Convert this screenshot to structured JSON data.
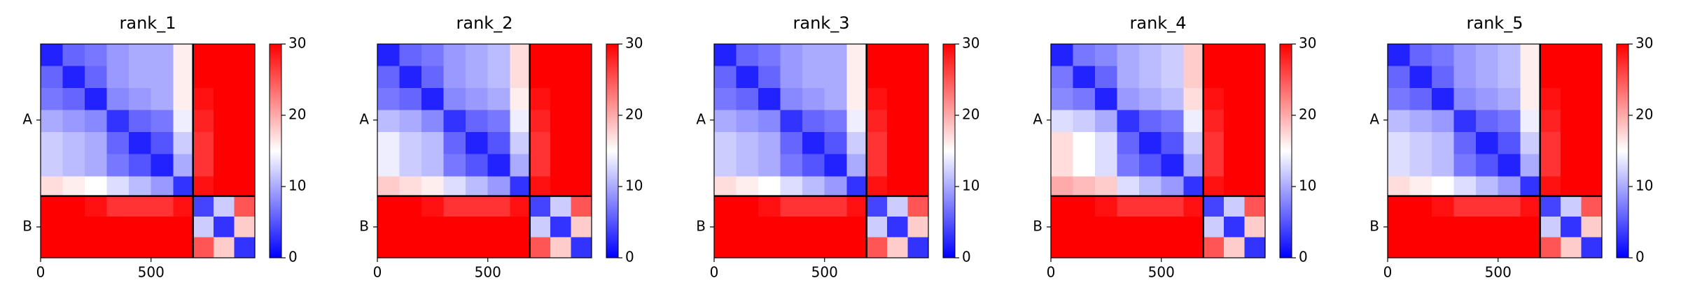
{
  "chart_data": [
    {
      "type": "heatmap",
      "title": "rank_1",
      "colormap": [
        "#0000ff",
        "#ffffff",
        "#ff0000"
      ],
      "xlim": [
        0,
        970
      ],
      "xticks": [
        0,
        500
      ],
      "ylim": [
        970,
        0
      ],
      "yticks": [
        {
          "value": 345,
          "label": "A"
        },
        {
          "value": 830,
          "label": "B"
        }
      ],
      "bins": [
        0,
        100,
        200,
        300,
        400,
        500,
        600,
        690,
        783,
        876,
        970
      ],
      "boundaries": [
        690
      ],
      "clim": [
        0,
        30
      ],
      "cticks": [
        0,
        10,
        20,
        30
      ],
      "matrix": [
        [
          2,
          6,
          7,
          9,
          10,
          10,
          16,
          30,
          30,
          30
        ],
        [
          6,
          2,
          6,
          9,
          10,
          10,
          16,
          30,
          30,
          30
        ],
        [
          7,
          6,
          2,
          8,
          9,
          10,
          16,
          29,
          30,
          30
        ],
        [
          10,
          9,
          8,
          3,
          6,
          7,
          14,
          28,
          30,
          30
        ],
        [
          12,
          11,
          10,
          6,
          2,
          5,
          12,
          27,
          30,
          30
        ],
        [
          12,
          11,
          10,
          7,
          5,
          2,
          10,
          27,
          30,
          30
        ],
        [
          17,
          16,
          15,
          13,
          11,
          9,
          3,
          29,
          30,
          30
        ],
        [
          30,
          30,
          29,
          27,
          27,
          27,
          29,
          4,
          12,
          25
        ],
        [
          30,
          30,
          30,
          30,
          30,
          30,
          30,
          12,
          3,
          18
        ],
        [
          30,
          30,
          30,
          30,
          30,
          30,
          30,
          25,
          18,
          3
        ]
      ]
    },
    {
      "type": "heatmap",
      "title": "rank_2",
      "colormap": [
        "#0000ff",
        "#ffffff",
        "#ff0000"
      ],
      "xlim": [
        0,
        970
      ],
      "xticks": [
        0,
        500
      ],
      "ylim": [
        970,
        0
      ],
      "yticks": [
        {
          "value": 345,
          "label": "A"
        },
        {
          "value": 830,
          "label": "B"
        }
      ],
      "bins": [
        0,
        100,
        200,
        300,
        400,
        500,
        600,
        690,
        783,
        876,
        970
      ],
      "boundaries": [
        690
      ],
      "clim": [
        0,
        30
      ],
      "cticks": [
        0,
        10,
        20,
        30
      ],
      "matrix": [
        [
          2,
          6,
          7,
          9,
          10,
          11,
          17,
          30,
          30,
          30
        ],
        [
          6,
          2,
          6,
          9,
          10,
          11,
          17,
          30,
          30,
          30
        ],
        [
          7,
          6,
          2,
          8,
          9,
          10,
          16,
          29,
          30,
          30
        ],
        [
          11,
          10,
          8,
          3,
          6,
          7,
          14,
          28,
          30,
          30
        ],
        [
          14,
          12,
          11,
          6,
          2,
          5,
          12,
          27,
          30,
          30
        ],
        [
          14,
          12,
          11,
          7,
          5,
          2,
          10,
          27,
          30,
          30
        ],
        [
          18,
          17,
          16,
          13,
          11,
          9,
          3,
          29,
          30,
          30
        ],
        [
          30,
          30,
          29,
          27,
          27,
          27,
          29,
          4,
          12,
          25
        ],
        [
          30,
          30,
          30,
          30,
          30,
          30,
          30,
          12,
          3,
          18
        ],
        [
          30,
          30,
          30,
          30,
          30,
          30,
          30,
          25,
          18,
          3
        ]
      ]
    },
    {
      "type": "heatmap",
      "title": "rank_3",
      "colormap": [
        "#0000ff",
        "#ffffff",
        "#ff0000"
      ],
      "xlim": [
        0,
        970
      ],
      "xticks": [
        0,
        500
      ],
      "ylim": [
        970,
        0
      ],
      "yticks": [
        {
          "value": 345,
          "label": "A"
        },
        {
          "value": 830,
          "label": "B"
        }
      ],
      "bins": [
        0,
        100,
        200,
        300,
        400,
        500,
        600,
        690,
        783,
        876,
        970
      ],
      "boundaries": [
        690
      ],
      "clim": [
        0,
        30
      ],
      "cticks": [
        0,
        10,
        20,
        30
      ],
      "matrix": [
        [
          2,
          6,
          7,
          9,
          10,
          10,
          16,
          30,
          30,
          30
        ],
        [
          6,
          2,
          6,
          9,
          10,
          10,
          16,
          30,
          30,
          30
        ],
        [
          7,
          6,
          2,
          8,
          9,
          10,
          16,
          29,
          30,
          30
        ],
        [
          10,
          9,
          8,
          3,
          6,
          7,
          14,
          28,
          30,
          30
        ],
        [
          12,
          11,
          10,
          6,
          2,
          5,
          12,
          27,
          30,
          30
        ],
        [
          12,
          11,
          10,
          7,
          5,
          2,
          10,
          27,
          30,
          30
        ],
        [
          17,
          16,
          15,
          13,
          11,
          9,
          3,
          29,
          30,
          30
        ],
        [
          30,
          30,
          29,
          27,
          27,
          27,
          29,
          4,
          12,
          25
        ],
        [
          30,
          30,
          30,
          30,
          30,
          30,
          30,
          12,
          3,
          18
        ],
        [
          30,
          30,
          30,
          30,
          30,
          30,
          30,
          25,
          18,
          3
        ]
      ]
    },
    {
      "type": "heatmap",
      "title": "rank_4",
      "colormap": [
        "#0000ff",
        "#ffffff",
        "#ff0000"
      ],
      "xlim": [
        0,
        970
      ],
      "xticks": [
        0,
        500
      ],
      "ylim": [
        970,
        0
      ],
      "yticks": [
        {
          "value": 345,
          "label": "A"
        },
        {
          "value": 830,
          "label": "B"
        }
      ],
      "bins": [
        0,
        100,
        200,
        300,
        400,
        500,
        600,
        690,
        783,
        876,
        970
      ],
      "boundaries": [
        690
      ],
      "clim": [
        0,
        30
      ],
      "cticks": [
        0,
        10,
        20,
        30
      ],
      "matrix": [
        [
          2,
          7,
          8,
          10,
          11,
          12,
          18,
          30,
          30,
          30
        ],
        [
          7,
          2,
          6,
          10,
          11,
          12,
          18,
          30,
          30,
          30
        ],
        [
          8,
          7,
          2,
          9,
          10,
          11,
          17,
          29,
          30,
          30
        ],
        [
          13,
          12,
          10,
          3,
          6,
          7,
          14,
          28,
          30,
          30
        ],
        [
          17,
          15,
          13,
          6,
          2,
          5,
          12,
          27,
          30,
          30
        ],
        [
          17,
          15,
          13,
          7,
          5,
          2,
          10,
          27,
          30,
          30
        ],
        [
          20,
          19,
          18,
          13,
          11,
          9,
          3,
          29,
          30,
          30
        ],
        [
          30,
          30,
          29,
          27,
          27,
          27,
          29,
          4,
          12,
          25
        ],
        [
          30,
          30,
          30,
          30,
          30,
          30,
          30,
          12,
          3,
          18
        ],
        [
          30,
          30,
          30,
          30,
          30,
          30,
          30,
          25,
          18,
          3
        ]
      ]
    },
    {
      "type": "heatmap",
      "title": "rank_5",
      "colormap": [
        "#0000ff",
        "#ffffff",
        "#ff0000"
      ],
      "xlim": [
        0,
        970
      ],
      "xticks": [
        0,
        500
      ],
      "ylim": [
        970,
        0
      ],
      "yticks": [
        {
          "value": 345,
          "label": "A"
        },
        {
          "value": 830,
          "label": "B"
        }
      ],
      "bins": [
        0,
        100,
        200,
        300,
        400,
        500,
        600,
        690,
        783,
        876,
        970
      ],
      "boundaries": [
        690
      ],
      "clim": [
        0,
        30
      ],
      "cticks": [
        0,
        10,
        20,
        30
      ],
      "matrix": [
        [
          2,
          6,
          7,
          9,
          10,
          11,
          16,
          30,
          30,
          30
        ],
        [
          6,
          2,
          6,
          9,
          10,
          11,
          16,
          30,
          30,
          30
        ],
        [
          7,
          6,
          2,
          8,
          9,
          10,
          16,
          29,
          30,
          30
        ],
        [
          11,
          10,
          9,
          3,
          6,
          7,
          14,
          28,
          30,
          30
        ],
        [
          13,
          12,
          11,
          6,
          2,
          5,
          12,
          27,
          30,
          30
        ],
        [
          13,
          12,
          11,
          7,
          5,
          2,
          10,
          27,
          30,
          30
        ],
        [
          17,
          16,
          15,
          13,
          11,
          9,
          3,
          29,
          30,
          30
        ],
        [
          30,
          30,
          29,
          27,
          27,
          27,
          29,
          4,
          12,
          25
        ],
        [
          30,
          30,
          30,
          30,
          30,
          30,
          30,
          12,
          3,
          18
        ],
        [
          30,
          30,
          30,
          30,
          30,
          30,
          30,
          25,
          18,
          3
        ]
      ]
    }
  ]
}
